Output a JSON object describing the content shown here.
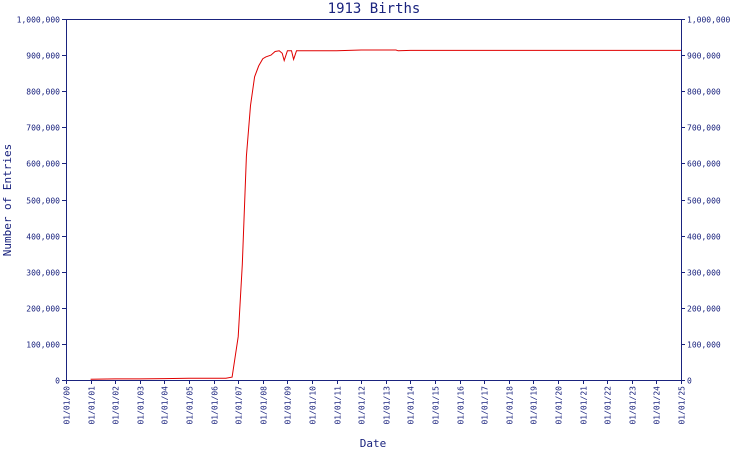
{
  "chart_data": {
    "type": "line",
    "title": "1913 Births",
    "xlabel": "Date",
    "ylabel": "Number of Entries",
    "ylim": [
      0,
      1000000
    ],
    "y_ticks": [
      "0",
      "100,000",
      "200,000",
      "300,000",
      "400,000",
      "500,000",
      "600,000",
      "700,000",
      "800,000",
      "900,000",
      "1,000,000"
    ],
    "x_ticks": [
      "01/01/00",
      "01/01/01",
      "01/01/02",
      "01/01/03",
      "01/01/04",
      "01/01/05",
      "01/01/06",
      "01/01/07",
      "01/01/08",
      "01/01/09",
      "01/01/10",
      "01/01/11",
      "01/01/12",
      "01/01/13",
      "01/01/14",
      "01/01/15",
      "01/01/16",
      "01/01/17",
      "01/01/18",
      "01/01/19",
      "01/01/20",
      "01/01/21",
      "01/01/22",
      "01/01/23",
      "01/01/24",
      "01/01/25"
    ],
    "xlim": [
      "01/01/00",
      "01/01/25"
    ],
    "y_axis_right": true,
    "grid": false,
    "series_color": "#e00000",
    "axis_color": "#1a237e",
    "series": [
      {
        "x": [
          "01/01/01",
          "01/01/02",
          "01/01/03",
          "01/01/04",
          "01/01/05",
          "01/01/06",
          "07/01/06",
          "10/01/06",
          "01/01/07",
          "03/01/07",
          "05/01/07",
          "07/01/07",
          "09/01/07",
          "11/01/07",
          "01/01/08",
          "02/15/08",
          "05/01/08",
          "07/01/08",
          "09/01/08",
          "10/15/08",
          "11/15/08",
          "01/01/09",
          "03/01/09",
          "04/01/09",
          "05/15/09",
          "08/01/09",
          "01/01/10",
          "01/01/11",
          "01/01/12",
          "01/01/13",
          "06/01/13",
          "07/01/13",
          "01/01/14",
          "01/01/15",
          "01/01/16",
          "01/01/17",
          "01/01/18",
          "01/01/19",
          "01/01/20",
          "01/01/21",
          "01/01/22",
          "01/01/23",
          "01/01/24",
          "01/01/25"
        ],
        "values": [
          2000,
          3000,
          3000,
          4000,
          5000,
          5000,
          5000,
          8000,
          120000,
          320000,
          620000,
          760000,
          840000,
          870000,
          890000,
          895000,
          900000,
          910000,
          912000,
          905000,
          885000,
          912000,
          912000,
          888000,
          912000,
          912000,
          912000,
          912000,
          914000,
          914000,
          914000,
          912000,
          913000,
          913000,
          913000,
          913000,
          913000,
          913000,
          913000,
          913000,
          913000,
          913000,
          913000,
          913000
        ]
      }
    ]
  }
}
